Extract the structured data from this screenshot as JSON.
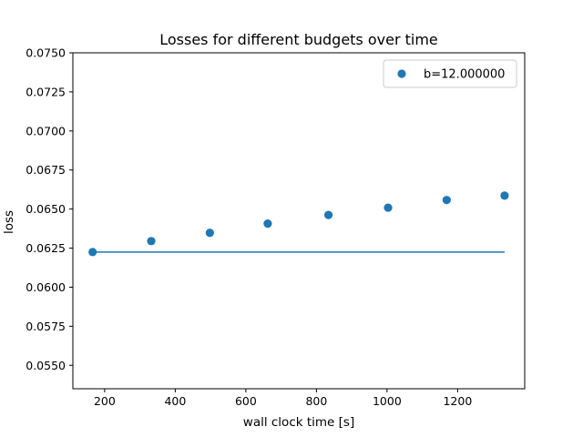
{
  "chart_data": {
    "type": "scatter",
    "title": "Losses for different budgets over time",
    "xlabel": "wall clock time [s]",
    "ylabel": "loss",
    "xlim": [
      110,
      1390
    ],
    "ylim": [
      0.0535,
      0.075
    ],
    "xticks": [
      200,
      400,
      600,
      800,
      1000,
      1200
    ],
    "yticks": [
      0.055,
      0.0575,
      0.06,
      0.0625,
      0.065,
      0.0675,
      0.07,
      0.0725,
      0.075
    ],
    "ytick_labels": [
      "0.0550",
      "0.0575",
      "0.0600",
      "0.0625",
      "0.0650",
      "0.0675",
      "0.0700",
      "0.0725",
      "0.0750"
    ],
    "grid": false,
    "legend_position": "top-right",
    "color": "#1f77b4",
    "series": [
      {
        "name": "b=12.000000",
        "x": [
          166,
          332,
          498,
          662,
          834,
          1003,
          1169,
          1333
        ],
        "y": [
          0.06225,
          0.06295,
          0.06348,
          0.06407,
          0.06462,
          0.06509,
          0.06558,
          0.06586
        ]
      }
    ],
    "hline": {
      "y": 0.06225,
      "x_start": 166,
      "x_end": 1333
    }
  }
}
